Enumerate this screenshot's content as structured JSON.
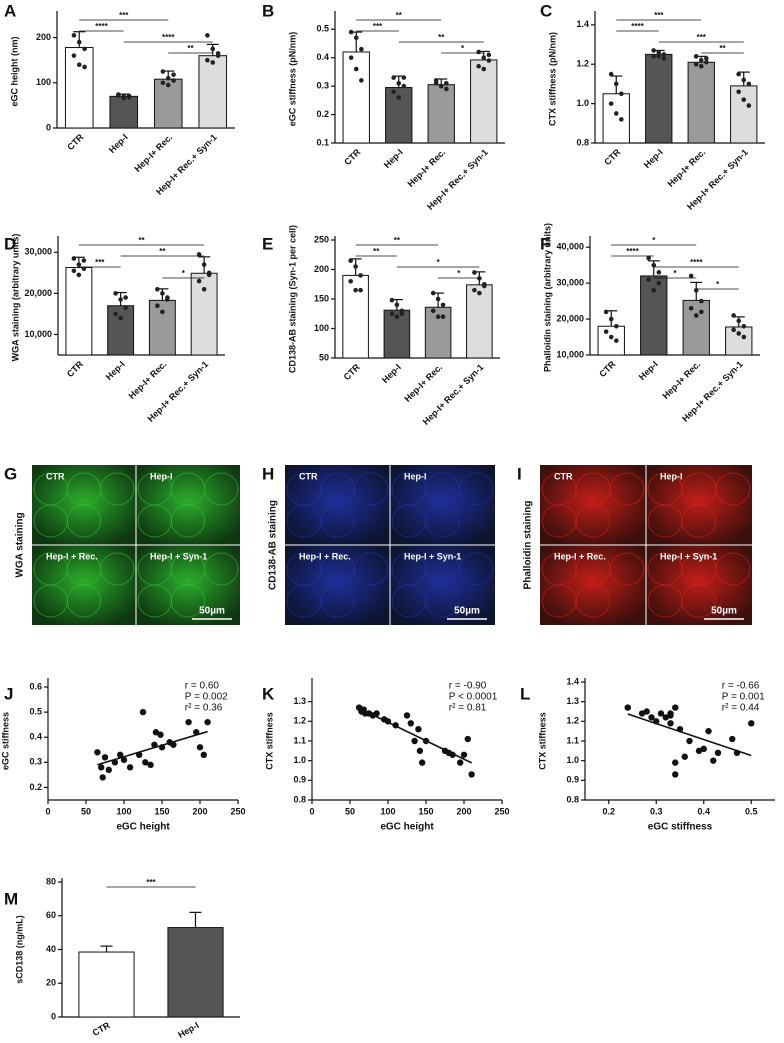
{
  "chart_data": [
    {
      "type": "bar",
      "label": "A",
      "ylabel": "eGC height (nm)",
      "categories": [
        "CTR",
        "Hep-I",
        "Hep-I+ Rec.",
        "Hep-I+ Rec.+ Syn-1"
      ],
      "values": [
        178,
        70,
        108,
        160
      ],
      "errors": [
        35,
        5,
        18,
        25
      ],
      "points": [
        [
          205,
          190,
          175,
          160,
          140,
          135
        ],
        [
          72,
          70,
          68,
          74,
          66,
          71
        ],
        [
          125,
          110,
          105,
          100,
          95,
          118
        ],
        [
          205,
          175,
          160,
          150,
          145,
          165
        ]
      ],
      "colors": [
        "#ffffff",
        "#555555",
        "#9a9a9a",
        "#dddddd"
      ],
      "ylim": [
        0,
        250
      ],
      "yticks": [
        0,
        100,
        200
      ],
      "significance": [
        {
          "between": [
            "CTR",
            "Hep-I+ Rec."
          ],
          "label": "***"
        },
        {
          "between": [
            "CTR",
            "Hep-I"
          ],
          "label": "****"
        },
        {
          "between": [
            "Hep-I",
            "Hep-I+ Rec.+ Syn-1"
          ],
          "label": "****"
        },
        {
          "between": [
            "Hep-I+ Rec.",
            "Hep-I+ Rec.+ Syn-1"
          ],
          "label": "**"
        }
      ]
    },
    {
      "type": "bar",
      "label": "B",
      "ylabel": "eGC stiffness (pN/nm)",
      "categories": [
        "CTR",
        "Hep-I",
        "Hep-I+ Rec.",
        "Hep-I+ Rec.+ Syn-1"
      ],
      "values": [
        0.42,
        0.295,
        0.305,
        0.392
      ],
      "errors": [
        0.07,
        0.04,
        0.02,
        0.03
      ],
      "points": [
        [
          0.49,
          0.47,
          0.43,
          0.4,
          0.36,
          0.32
        ],
        [
          0.33,
          0.31,
          0.3,
          0.28,
          0.26,
          0.33
        ],
        [
          0.31,
          0.3,
          0.29,
          0.32,
          0.3,
          0.31
        ],
        [
          0.42,
          0.4,
          0.39,
          0.37,
          0.36,
          0.41
        ]
      ],
      "colors": [
        "#ffffff",
        "#555555",
        "#9a9a9a",
        "#dddddd"
      ],
      "ylim": [
        0.1,
        0.55
      ],
      "yticks": [
        0.1,
        0.2,
        0.3,
        0.4,
        0.5
      ],
      "significance": [
        {
          "between": [
            "CTR",
            "Hep-I+ Rec."
          ],
          "label": "**"
        },
        {
          "between": [
            "CTR",
            "Hep-I"
          ],
          "label": "***"
        },
        {
          "between": [
            "Hep-I",
            "Hep-I+ Rec.+ Syn-1"
          ],
          "label": "**"
        },
        {
          "between": [
            "Hep-I+ Rec.",
            "Hep-I+ Rec.+ Syn-1"
          ],
          "label": "*"
        }
      ]
    },
    {
      "type": "bar",
      "label": "C",
      "ylabel": "CTX stiffness (pN/nm)",
      "categories": [
        "CTR",
        "Hep-I",
        "Hep-I+ Rec.",
        "Hep-I+ Rec.+ Syn-1"
      ],
      "values": [
        1.05,
        1.25,
        1.21,
        1.09
      ],
      "errors": [
        0.09,
        0.02,
        0.03,
        0.07
      ],
      "points": [
        [
          1.15,
          1.1,
          1.05,
          1.0,
          0.95,
          0.92
        ],
        [
          1.27,
          1.26,
          1.25,
          1.24,
          1.24,
          1.23
        ],
        [
          1.24,
          1.22,
          1.21,
          1.2,
          1.19,
          1.23
        ],
        [
          1.15,
          1.12,
          1.1,
          1.06,
          1.02,
          0.99
        ]
      ],
      "colors": [
        "#ffffff",
        "#555555",
        "#9a9a9a",
        "#dddddd"
      ],
      "ylim": [
        0.8,
        1.45
      ],
      "yticks": [
        {
          "value": 0.8,
          "label": "0.8"
        },
        {
          "value": 1,
          "label": "1.0"
        },
        {
          "value": 1.2,
          "label": "1.2"
        },
        {
          "value": 1.4,
          "label": "1.4"
        }
      ],
      "significance": [
        {
          "between": [
            "CTR",
            "Hep-I+ Rec."
          ],
          "label": "***"
        },
        {
          "between": [
            "CTR",
            "Hep-I"
          ],
          "label": "****"
        },
        {
          "between": [
            "Hep-I",
            "Hep-I+ Rec.+ Syn-1"
          ],
          "label": "***"
        },
        {
          "between": [
            "Hep-I+ Rec.",
            "Hep-I+ Rec.+ Syn-1"
          ],
          "label": "**"
        }
      ]
    },
    {
      "type": "bar",
      "label": "D",
      "ylabel": "WGA staining (arbitrary units)",
      "categories": [
        "CTR",
        "Hep-I",
        "Hep-I+ Rec.",
        "Hep-I+ Rec.+ Syn-1"
      ],
      "values": [
        26300,
        17000,
        18300,
        24900
      ],
      "errors": [
        2500,
        3200,
        2800,
        4000
      ],
      "points": [
        [
          28500,
          27000,
          26000,
          25500,
          24500,
          28000
        ],
        [
          20000,
          18500,
          16500,
          15000,
          14000,
          19000
        ],
        [
          21000,
          20000,
          18500,
          17000,
          15500,
          19000
        ],
        [
          29500,
          27000,
          25000,
          23000,
          21000,
          24500
        ]
      ],
      "colors": [
        "#ffffff",
        "#555555",
        "#9a9a9a",
        "#dddddd"
      ],
      "ylim": [
        5000,
        33000
      ],
      "yticks": [
        {
          "value": 10000,
          "label": "10,000"
        },
        {
          "value": 20000,
          "label": "20,000"
        },
        {
          "value": 30000,
          "label": "30,000"
        }
      ],
      "significance": [
        {
          "between": [
            "CTR",
            "Hep-I+ Rec.+ Syn-1"
          ],
          "label": "**"
        },
        {
          "between": [
            "Hep-I",
            "Hep-I+ Rec.+ Syn-1"
          ],
          "label": "**"
        },
        {
          "between": [
            "CTR",
            "Hep-I"
          ],
          "label": "***"
        },
        {
          "between": [
            "Hep-I+ Rec.",
            "Hep-I+ Rec.+ Syn-1"
          ],
          "label": "*"
        }
      ]
    },
    {
      "type": "bar",
      "label": "E",
      "ylabel": "CD138-AB staining (Syn-1 per cell)",
      "categories": [
        "CTR",
        "Hep-I",
        "Hep-I+ Rec.",
        "Hep-I+ Rec.+ Syn-1"
      ],
      "values": [
        190,
        131,
        136,
        174
      ],
      "errors": [
        28,
        18,
        24,
        22
      ],
      "points": [
        [
          215,
          205,
          190,
          180,
          165,
          165
        ],
        [
          148,
          140,
          130,
          125,
          120,
          125
        ],
        [
          160,
          150,
          140,
          130,
          120,
          120
        ],
        [
          195,
          185,
          175,
          165,
          160,
          172
        ]
      ],
      "colors": [
        "#ffffff",
        "#555555",
        "#9a9a9a",
        "#dddddd"
      ],
      "ylim": [
        50,
        250
      ],
      "yticks": [
        50,
        100,
        150,
        200,
        250
      ],
      "significance": [
        {
          "between": [
            "CTR",
            "Hep-I+ Rec."
          ],
          "label": "**"
        },
        {
          "between": [
            "CTR",
            "Hep-I"
          ],
          "label": "**"
        },
        {
          "between": [
            "Hep-I",
            "Hep-I+ Rec.+ Syn-1"
          ],
          "label": "*"
        },
        {
          "between": [
            "Hep-I+ Rec.",
            "Hep-I+ Rec.+ Syn-1"
          ],
          "label": "*"
        }
      ]
    },
    {
      "type": "bar",
      "label": "F",
      "ylabel": "Phalloidin staining (arbitrary units)",
      "categories": [
        "CTR",
        "Hep-I",
        "Hep-I+ Rec.",
        "Hep-I+ Rec.+ Syn-1"
      ],
      "values": [
        18000,
        32000,
        25200,
        17800
      ],
      "errors": [
        4300,
        4200,
        5000,
        2800
      ],
      "points": [
        [
          22000,
          20000,
          18000,
          16500,
          15000,
          14000
        ],
        [
          37000,
          35000,
          33000,
          31000,
          28000,
          30000
        ],
        [
          32000,
          28000,
          25000,
          23000,
          21000,
          22000
        ],
        [
          21000,
          19500,
          18000,
          17000,
          16000,
          15000
        ]
      ],
      "colors": [
        "#ffffff",
        "#555555",
        "#9a9a9a",
        "#dddddd"
      ],
      "ylim": [
        10000,
        42000
      ],
      "yticks": [
        {
          "value": 10000,
          "label": "10,000"
        },
        {
          "value": 20000,
          "label": "20,000"
        },
        {
          "value": 30000,
          "label": "30,000"
        },
        {
          "value": 40000,
          "label": "40,000"
        }
      ],
      "significance": [
        {
          "between": [
            "CTR",
            "Hep-I+ Rec."
          ],
          "label": "*"
        },
        {
          "between": [
            "CTR",
            "Hep-I"
          ],
          "label": "****"
        },
        {
          "between": [
            "Hep-I",
            "Hep-I+ Rec.+ Syn-1"
          ],
          "label": "****"
        },
        {
          "between": [
            "Hep-I",
            "Hep-I+ Rec."
          ],
          "label": "*"
        },
        {
          "between": [
            "Hep-I+ Rec.",
            "Hep-I+ Rec.+ Syn-1"
          ],
          "label": "*"
        }
      ]
    },
    {
      "type": "micrograph",
      "label": "G",
      "ylabel": "WGA staining",
      "tiles": [
        "CTR",
        "Hep-I",
        "Hep-I + Rec.",
        "Hep-I + Syn-1"
      ],
      "scale_bar": "50µm",
      "color": "#2fbf2f"
    },
    {
      "type": "micrograph",
      "label": "H",
      "ylabel": "CD138-AB staining",
      "tiles": [
        "CTR",
        "Hep-I",
        "Hep-I + Rec.",
        "Hep-I + Syn-1"
      ],
      "scale_bar": "50µm",
      "color": "#2233aa"
    },
    {
      "type": "micrograph",
      "label": "I",
      "ylabel": "Phalloidin staining",
      "tiles": [
        "CTR",
        "Hep-I",
        "Hep-I + Rec.",
        "Hep-I + Syn-1"
      ],
      "scale_bar": "50µm",
      "color": "#d8201a"
    },
    {
      "type": "scatter",
      "label": "J",
      "xlabel": "eGC height",
      "ylabel": "eGC stiffness",
      "x": [
        65,
        70,
        72,
        75,
        80,
        88,
        95,
        100,
        108,
        120,
        125,
        128,
        135,
        140,
        142,
        148,
        150,
        160,
        165,
        185,
        195,
        200,
        205,
        210
      ],
      "y": [
        0.34,
        0.28,
        0.24,
        0.32,
        0.27,
        0.3,
        0.33,
        0.31,
        0.28,
        0.33,
        0.5,
        0.3,
        0.29,
        0.37,
        0.42,
        0.41,
        0.36,
        0.38,
        0.37,
        0.46,
        0.42,
        0.36,
        0.33,
        0.46
      ],
      "xlim": [
        0,
        250
      ],
      "xticks": [
        0,
        50,
        100,
        150,
        200,
        250
      ],
      "ylim": [
        0.15,
        0.62
      ],
      "yticks": [
        0.2,
        0.3,
        0.4,
        0.5,
        0.6
      ],
      "stats": [
        "r = 0.60",
        "P = 0.002",
        "r² = 0.36"
      ]
    },
    {
      "type": "scatter",
      "label": "K",
      "xlabel": "eGC height",
      "ylabel": "CTX stiffness",
      "x": [
        62,
        65,
        68,
        70,
        75,
        80,
        85,
        95,
        100,
        110,
        125,
        130,
        135,
        140,
        142,
        145,
        150,
        175,
        180,
        185,
        195,
        200,
        205,
        210
      ],
      "y": [
        1.27,
        1.25,
        1.26,
        1.24,
        1.24,
        1.23,
        1.24,
        1.21,
        1.2,
        1.18,
        1.23,
        1.19,
        1.1,
        1.16,
        1.05,
        0.99,
        1.1,
        1.05,
        1.04,
        1.03,
        0.99,
        1.03,
        1.11,
        0.93
      ],
      "xlim": [
        0,
        250
      ],
      "xticks": [
        0,
        50,
        100,
        150,
        200,
        250
      ],
      "ylim": [
        0.8,
        1.4
      ],
      "yticks": [
        {
          "value": 0.8,
          "label": "0.8"
        },
        {
          "value": 0.9,
          "label": "0.9"
        },
        {
          "value": 1,
          "label": "1.0"
        },
        {
          "value": 1.1,
          "label": "1.1"
        },
        {
          "value": 1.2,
          "label": "1.2"
        },
        {
          "value": 1.3,
          "label": "1.3"
        }
      ],
      "stats": [
        "r = -0.90",
        "P < 0.0001",
        "r² = 0.81"
      ]
    },
    {
      "type": "scatter",
      "label": "L",
      "xlabel": "eGC stiffness",
      "ylabel": "CTX stiffness",
      "x": [
        0.24,
        0.27,
        0.28,
        0.29,
        0.3,
        0.31,
        0.32,
        0.33,
        0.33,
        0.34,
        0.33,
        0.35,
        0.34,
        0.36,
        0.37,
        0.39,
        0.4,
        0.41,
        0.42,
        0.43,
        0.46,
        0.47,
        0.5,
        0.34
      ],
      "y": [
        1.27,
        1.24,
        1.25,
        1.22,
        1.2,
        1.24,
        1.22,
        1.23,
        1.24,
        1.27,
        1.19,
        1.16,
        0.93,
        1.02,
        1.1,
        1.05,
        1.06,
        1.15,
        1.0,
        1.04,
        1.11,
        1.04,
        1.19,
        0.99
      ],
      "xlim": [
        0.15,
        0.55
      ],
      "xticks": [
        0.2,
        0.3,
        0.4,
        0.5
      ],
      "ylim": [
        0.8,
        1.4
      ],
      "yticks": [
        {
          "value": 0.8,
          "label": "0.8"
        },
        {
          "value": 0.9,
          "label": "0.9"
        },
        {
          "value": 1,
          "label": "1.0"
        },
        {
          "value": 1.1,
          "label": "1.1"
        },
        {
          "value": 1.2,
          "label": "1.2"
        },
        {
          "value": 1.3,
          "label": "1.3"
        },
        {
          "value": 1.4,
          "label": "1.4"
        }
      ],
      "stats": [
        "r = -0.66",
        "P = 0.001",
        "r² = 0.44"
      ]
    },
    {
      "type": "bar",
      "label": "M",
      "ylabel": "sCD138 (ng/mL)",
      "categories": [
        "CTR",
        "Hep-I"
      ],
      "values": [
        38.5,
        53
      ],
      "errors": [
        3.5,
        9
      ],
      "colors": [
        "#ffffff",
        "#555555"
      ],
      "ylim": [
        0,
        80
      ],
      "yticks": [
        0,
        20,
        40,
        60,
        80
      ],
      "significance": [
        {
          "between": [
            "CTR",
            "Hep-I"
          ],
          "label": "***"
        }
      ]
    }
  ]
}
